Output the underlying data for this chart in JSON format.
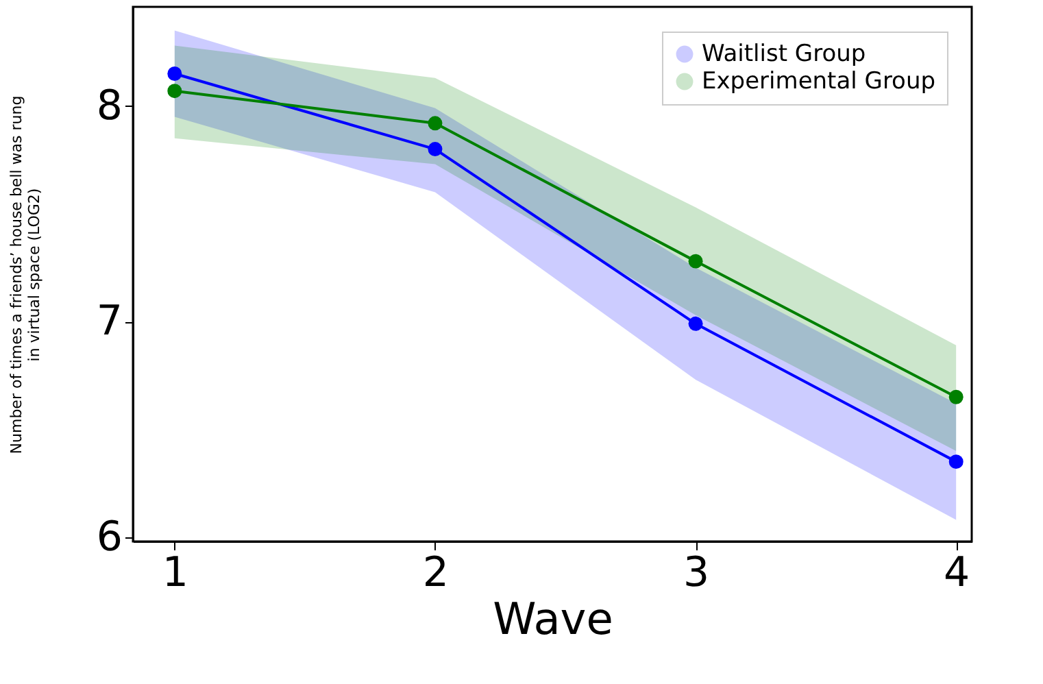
{
  "chart_data": {
    "type": "line",
    "xlabel": "Wave",
    "ylabel": "Number of times a friends’ house bell was rung\nin virtual space (LOG2)",
    "x": [
      1,
      2,
      3,
      4
    ],
    "xlim": [
      0.84,
      4.06
    ],
    "xticks": [
      1,
      2,
      3,
      4
    ],
    "ylim": [
      5.98,
      8.46
    ],
    "yticks": [
      6,
      7,
      8
    ],
    "marker": "circle",
    "grid": false,
    "legend": "top right",
    "series": [
      {
        "name": "Waitlist Group",
        "color": "#0000ff",
        "values": [
          8.15,
          7.8,
          6.99,
          6.35
        ],
        "lower": [
          7.95,
          7.6,
          6.73,
          6.08
        ],
        "upper": [
          8.35,
          7.99,
          7.25,
          6.62
        ]
      },
      {
        "name": "Experimental Group",
        "color": "#008000",
        "values": [
          8.07,
          7.92,
          7.28,
          6.65
        ],
        "lower": [
          7.85,
          7.73,
          7.03,
          6.4
        ],
        "upper": [
          8.28,
          8.13,
          7.53,
          6.89
        ]
      }
    ]
  }
}
